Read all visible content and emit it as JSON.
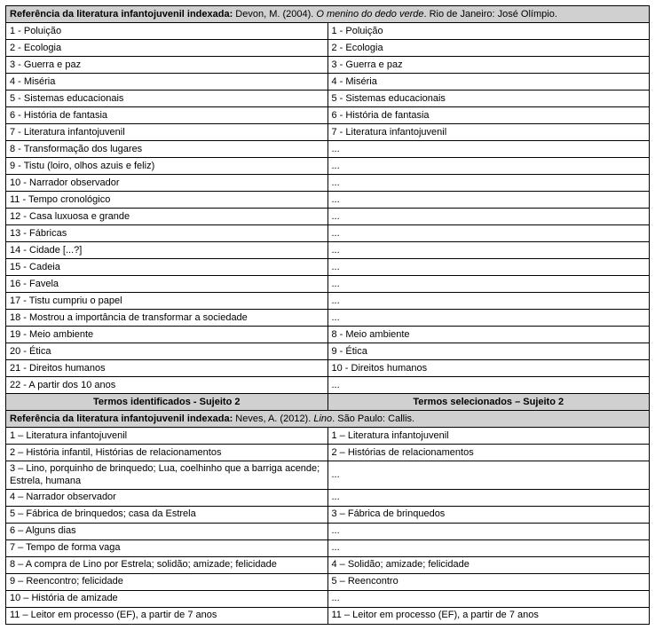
{
  "colors": {
    "header_bg": "#d0d0d0",
    "border": "#000000",
    "text": "#000000",
    "bg": "#ffffff"
  },
  "table1": {
    "ref_label": "Referência da literatura infantojuvenil indexada:",
    "ref_author": " Devon, M. (2004). ",
    "ref_title_italic": "O menino do dedo verde",
    "ref_tail": ". Rio de Janeiro: José Olímpio.",
    "rows": [
      {
        "l": "1 - Poluição",
        "r": "1 - Poluição"
      },
      {
        "l": "2 - Ecologia",
        "r": "2 - Ecologia"
      },
      {
        "l": "3 - Guerra e paz",
        "r": "3 - Guerra e paz"
      },
      {
        "l": "4 - Miséria",
        "r": "4 - Miséria"
      },
      {
        "l": "5 - Sistemas educacionais",
        "r": "5 - Sistemas educacionais"
      },
      {
        "l": "6 - História de fantasia",
        "r": "6 - História de fantasia"
      },
      {
        "l": "7 - Literatura infantojuvenil",
        "r": "7 - Literatura infantojuvenil"
      },
      {
        "l": "8 - Transformação dos lugares",
        "r": "..."
      },
      {
        "l": "9 - Tistu (loiro, olhos azuis e feliz)",
        "r": "..."
      },
      {
        "l": "10 - Narrador observador",
        "r": "..."
      },
      {
        "l": "11 - Tempo cronológico",
        "r": "..."
      },
      {
        "l": "12 - Casa luxuosa e grande",
        "r": "..."
      },
      {
        "l": "13 - Fábricas",
        "r": "..."
      },
      {
        "l": "14 - Cidade [...?]",
        "r": "..."
      },
      {
        "l": "15 - Cadeia",
        "r": "..."
      },
      {
        "l": "16 - Favela",
        "r": "..."
      },
      {
        "l": "17 - Tistu cumpriu o papel",
        "r": "..."
      },
      {
        "l": "18 - Mostrou a importância de transformar a sociedade",
        "r": "..."
      },
      {
        "l": "19 - Meio ambiente",
        "r": "8 - Meio ambiente"
      },
      {
        "l": "20 - Ética",
        "r": "9 - Ética"
      },
      {
        "l": "21 - Direitos humanos",
        "r": "10 - Direitos humanos"
      },
      {
        "l": "22 - A partir dos 10 anos",
        "r": "..."
      }
    ]
  },
  "divider": {
    "left": "Termos identificados - Sujeito 2",
    "right": "Termos selecionados – Sujeito 2"
  },
  "table2": {
    "ref_label": "Referência da literatura infantojuvenil indexada:",
    "ref_author": " Neves, A. (2012). ",
    "ref_title_italic": "Lino",
    "ref_tail": ". São Paulo: Callis.",
    "rows": [
      {
        "l": "1 – Literatura infantojuvenil",
        "r": "1 – Literatura infantojuvenil"
      },
      {
        "l": "2 – História infantil, Histórias de relacionamentos",
        "r": "2 – Histórias de relacionamentos"
      },
      {
        "l": "3 – Lino, porquinho de brinquedo; Lua, coelhinho que a barriga acende; Estrela, humana",
        "r": "...",
        "wrap": true
      },
      {
        "l": "4 – Narrador observador",
        "r": "..."
      },
      {
        "l": "5 – Fábrica de brinquedos; casa da Estrela",
        "r": "3 – Fábrica de brinquedos"
      },
      {
        "l": "6 – Alguns dias",
        "r": "..."
      },
      {
        "l": "7 – Tempo de forma vaga",
        "r": "..."
      },
      {
        "l": "8 – A compra de Lino por Estrela; solidão; amizade; felicidade",
        "r": "4 – Solidão; amizade; felicidade"
      },
      {
        "l": "9 – Reencontro; felicidade",
        "r": "5 – Reencontro"
      },
      {
        "l": "10 – História de amizade",
        "r": "..."
      },
      {
        "l": "11 – Leitor em processo (EF), a partir de 7 anos",
        "r": "11 – Leitor em processo (EF), a partir de 7 anos"
      }
    ]
  }
}
